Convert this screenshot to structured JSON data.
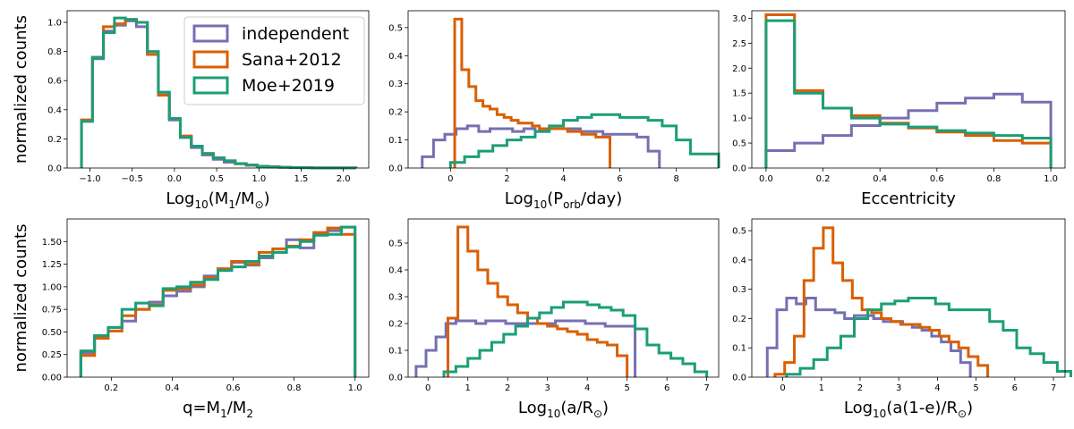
{
  "colors": {
    "independent": "#7570b3",
    "sana": "#d95f02",
    "moe": "#1b9e77"
  },
  "legend": {
    "location": "upper right of first panel",
    "entries": [
      {
        "label": "independent",
        "color": "#7570b3"
      },
      {
        "label": "Sana+2012",
        "color": "#d95f02"
      },
      {
        "label": "Moe+2019",
        "color": "#1b9e77"
      }
    ]
  },
  "chart_data": [
    {
      "id": "p1",
      "type": "histogram",
      "xlabel_main": "Log",
      "xlabel_sub": "10",
      "xlabel_rest": "(M",
      "xlabel_sub2": "1",
      "xlabel_rest2": "/M",
      "xlabel_sun": "⊙",
      "xlabel_tail": ")",
      "ylabel": "normalized counts",
      "xlim": [
        -1.27,
        2.3
      ],
      "ylim": [
        0,
        1.08
      ],
      "xticks": [
        -1.0,
        -0.5,
        0.0,
        0.5,
        1.0,
        1.5,
        2.0
      ],
      "xtick_labels": [
        "−1.0",
        "−0.5",
        "0.0",
        "0.5",
        "1.0",
        "1.5",
        "2.0"
      ],
      "yticks": [
        0.0,
        0.2,
        0.4,
        0.6,
        0.8,
        1.0
      ],
      "ytick_labels": [
        "0.0",
        "0.2",
        "0.4",
        "0.6",
        "0.8",
        "1.0"
      ],
      "series": [
        {
          "key": "independent",
          "x0": -1.1,
          "bin_width": 0.13,
          "values": [
            0.33,
            0.75,
            0.94,
            0.98,
            1.01,
            0.97,
            0.78,
            0.52,
            0.33,
            0.21,
            0.14,
            0.09,
            0.06,
            0.04,
            0.03,
            0.02,
            0.01,
            0.01,
            0.005,
            0.003,
            0.002,
            0.001,
            0.001,
            0.001,
            0.0005
          ]
        },
        {
          "key": "sana",
          "x0": -1.1,
          "bin_width": 0.13,
          "values": [
            0.33,
            0.76,
            0.97,
            0.99,
            1.02,
            1.0,
            0.78,
            0.5,
            0.34,
            0.22,
            0.15,
            0.1,
            0.07,
            0.05,
            0.03,
            0.02,
            0.012,
            0.008,
            0.005,
            0.003,
            0.002,
            0.001,
            0.001,
            0.001,
            0.0005
          ]
        },
        {
          "key": "moe",
          "x0": -1.1,
          "bin_width": 0.13,
          "values": [
            0.32,
            0.76,
            0.93,
            1.03,
            1.02,
            1.0,
            0.8,
            0.52,
            0.34,
            0.21,
            0.15,
            0.1,
            0.07,
            0.05,
            0.03,
            0.02,
            0.012,
            0.008,
            0.005,
            0.003,
            0.002,
            0.001,
            0.001,
            0.001,
            0.0005
          ]
        }
      ]
    },
    {
      "id": "p2",
      "type": "histogram",
      "xlabel_main": "Log",
      "xlabel_sub": "10",
      "xlabel_rest": "(P",
      "xlabel_sub2": "orb",
      "xlabel_rest2": "/day)",
      "xlabel_sun": "",
      "xlabel_tail": "",
      "ylabel": "",
      "xlim": [
        -1.5,
        9.5
      ],
      "ylim": [
        0,
        0.56
      ],
      "xticks": [
        0,
        2,
        4,
        6,
        8
      ],
      "xtick_labels": [
        "0",
        "2",
        "4",
        "6",
        "8"
      ],
      "yticks": [
        0.0,
        0.1,
        0.2,
        0.3,
        0.4,
        0.5
      ],
      "ytick_labels": [
        "0.0",
        "0.1",
        "0.2",
        "0.3",
        "0.4",
        "0.5"
      ],
      "series": [
        {
          "key": "independent",
          "x0": -1.0,
          "bin_width": 0.4,
          "values": [
            0.04,
            0.1,
            0.12,
            0.14,
            0.15,
            0.13,
            0.14,
            0.14,
            0.13,
            0.14,
            0.13,
            0.14,
            0.14,
            0.14,
            0.13,
            0.13,
            0.12,
            0.12,
            0.12,
            0.11,
            0.06
          ]
        },
        {
          "key": "sana",
          "x0": 0.15,
          "bin_width": 0.25,
          "values": [
            0.53,
            0.35,
            0.29,
            0.24,
            0.22,
            0.21,
            0.19,
            0.18,
            0.17,
            0.16,
            0.16,
            0.15,
            0.14,
            0.14,
            0.14,
            0.14,
            0.13,
            0.13,
            0.12,
            0.12,
            0.11,
            0.11
          ]
        },
        {
          "key": "moe",
          "x0": 0.0,
          "bin_width": 0.5,
          "values": [
            0.02,
            0.04,
            0.06,
            0.08,
            0.1,
            0.11,
            0.13,
            0.15,
            0.17,
            0.18,
            0.19,
            0.19,
            0.18,
            0.18,
            0.17,
            0.15,
            0.1,
            0.05,
            0.05
          ]
        }
      ]
    },
    {
      "id": "p3",
      "type": "histogram",
      "xlabel_plain": "Eccentricity",
      "ylabel": "",
      "xlim": [
        -0.05,
        1.05
      ],
      "ylim": [
        0,
        3.15
      ],
      "xticks": [
        0.0,
        0.2,
        0.4,
        0.6,
        0.8,
        1.0
      ],
      "xtick_labels": [
        "0.0",
        "0.2",
        "0.4",
        "0.6",
        "0.8",
        "1.0"
      ],
      "yticks": [
        0.0,
        0.5,
        1.0,
        1.5,
        2.0,
        2.5,
        3.0
      ],
      "ytick_labels": [
        "0.0",
        "0.5",
        "1.0",
        "1.5",
        "2.0",
        "2.5",
        "3.0"
      ],
      "series": [
        {
          "key": "independent",
          "x0": 0.0,
          "bin_width": 0.1,
          "values": [
            0.35,
            0.5,
            0.65,
            0.85,
            1.0,
            1.15,
            1.3,
            1.4,
            1.48,
            1.32
          ]
        },
        {
          "key": "sana",
          "x0": 0.0,
          "bin_width": 0.1,
          "values": [
            3.07,
            1.55,
            1.2,
            1.05,
            0.9,
            0.8,
            0.72,
            0.65,
            0.55,
            0.5
          ]
        },
        {
          "key": "moe",
          "x0": 0.0,
          "bin_width": 0.1,
          "values": [
            2.95,
            1.5,
            1.2,
            1.0,
            0.88,
            0.82,
            0.75,
            0.7,
            0.65,
            0.6
          ]
        }
      ]
    },
    {
      "id": "p4",
      "type": "histogram",
      "xlabel_main": "q=M",
      "xlabel_sub": "1",
      "xlabel_rest": "/M",
      "xlabel_sub2": "2",
      "xlabel_rest2": "",
      "xlabel_sun": "",
      "xlabel_tail": "",
      "ylabel": "normalized counts",
      "xlim": [
        0.055,
        1.045
      ],
      "ylim": [
        0,
        1.75
      ],
      "xticks": [
        0.2,
        0.4,
        0.6,
        0.8,
        1.0
      ],
      "xtick_labels": [
        "0.2",
        "0.4",
        "0.6",
        "0.8",
        "1.0"
      ],
      "yticks": [
        0.0,
        0.25,
        0.5,
        0.75,
        1.0,
        1.25,
        1.5
      ],
      "ytick_labels": [
        "0.00",
        "0.25",
        "0.50",
        "0.75",
        "1.00",
        "1.25",
        "1.50"
      ],
      "series": [
        {
          "key": "independent",
          "x0": 0.1,
          "bin_width": 0.045,
          "values": [
            0.27,
            0.46,
            0.55,
            0.62,
            0.75,
            0.83,
            0.9,
            0.95,
            1.0,
            1.12,
            1.18,
            1.27,
            1.24,
            1.32,
            1.38,
            1.52,
            1.43,
            1.58,
            1.62,
            1.66
          ]
        },
        {
          "key": "sana",
          "x0": 0.1,
          "bin_width": 0.045,
          "values": [
            0.24,
            0.43,
            0.51,
            0.68,
            0.75,
            0.8,
            0.96,
            0.98,
            1.02,
            1.1,
            1.2,
            1.28,
            1.25,
            1.38,
            1.42,
            1.45,
            1.52,
            1.6,
            1.65,
            1.58
          ]
        },
        {
          "key": "moe",
          "x0": 0.1,
          "bin_width": 0.045,
          "values": [
            0.29,
            0.46,
            0.55,
            0.75,
            0.82,
            0.79,
            0.98,
            1.0,
            1.05,
            1.08,
            1.18,
            1.22,
            1.28,
            1.34,
            1.38,
            1.44,
            1.5,
            1.57,
            1.58,
            1.66
          ]
        }
      ]
    },
    {
      "id": "p5",
      "type": "histogram",
      "xlabel_main": "Log",
      "xlabel_sub": "10",
      "xlabel_rest": "(a/R",
      "xlabel_sub2": "",
      "xlabel_rest2": "",
      "xlabel_sun": "⊙",
      "xlabel_tail": ")",
      "ylabel": "",
      "xlim": [
        -0.5,
        7.3
      ],
      "ylim": [
        0,
        0.59
      ],
      "xticks": [
        0,
        1,
        2,
        3,
        4,
        5,
        6,
        7
      ],
      "xtick_labels": [
        "0",
        "1",
        "2",
        "3",
        "4",
        "5",
        "6",
        "7"
      ],
      "yticks": [
        0.0,
        0.1,
        0.2,
        0.3,
        0.4,
        0.5
      ],
      "ytick_labels": [
        "0.0",
        "0.1",
        "0.2",
        "0.3",
        "0.4",
        "0.5"
      ],
      "series": [
        {
          "key": "independent",
          "x0": -0.3,
          "bin_width": 0.25,
          "values": [
            0.04,
            0.1,
            0.15,
            0.2,
            0.21,
            0.21,
            0.2,
            0.21,
            0.21,
            0.2,
            0.2,
            0.2,
            0.2,
            0.2,
            0.21,
            0.21,
            0.21,
            0.2,
            0.2,
            0.19,
            0.19,
            0.19
          ]
        },
        {
          "key": "sana",
          "x0": 0.5,
          "bin_width": 0.25,
          "values": [
            0.22,
            0.56,
            0.47,
            0.4,
            0.35,
            0.3,
            0.27,
            0.24,
            0.22,
            0.2,
            0.19,
            0.18,
            0.17,
            0.16,
            0.14,
            0.13,
            0.12,
            0.08
          ]
        },
        {
          "key": "moe",
          "x0": 0.4,
          "bin_width": 0.3,
          "values": [
            0.02,
            0.04,
            0.07,
            0.1,
            0.13,
            0.16,
            0.19,
            0.22,
            0.24,
            0.26,
            0.28,
            0.28,
            0.27,
            0.26,
            0.25,
            0.23,
            0.18,
            0.12,
            0.09,
            0.07,
            0.05,
            0.02
          ]
        }
      ]
    },
    {
      "id": "p6",
      "type": "histogram",
      "xlabel_main": "Log",
      "xlabel_sub": "10",
      "xlabel_rest": "(a(1-e)/R",
      "xlabel_sub2": "",
      "xlabel_rest2": "",
      "xlabel_sun": "⊙",
      "xlabel_tail": ")",
      "ylabel": "",
      "xlim": [
        -0.8,
        7.3
      ],
      "ylim": [
        0,
        0.54
      ],
      "xticks": [
        0,
        1,
        2,
        3,
        4,
        5,
        6,
        7
      ],
      "xtick_labels": [
        "0",
        "1",
        "2",
        "3",
        "4",
        "5",
        "6",
        "7"
      ],
      "yticks": [
        0.0,
        0.1,
        0.2,
        0.3,
        0.4,
        0.5
      ],
      "ytick_labels": [
        "0.0",
        "0.1",
        "0.2",
        "0.3",
        "0.4",
        "0.5"
      ],
      "series": [
        {
          "key": "independent",
          "x0": -0.4,
          "bin_width": 0.25,
          "values": [
            0.1,
            0.23,
            0.27,
            0.25,
            0.27,
            0.23,
            0.23,
            0.22,
            0.2,
            0.21,
            0.21,
            0.2,
            0.19,
            0.19,
            0.18,
            0.17,
            0.16,
            0.14,
            0.12,
            0.09,
            0.05
          ]
        },
        {
          "key": "sana",
          "x0": -0.2,
          "bin_width": 0.25,
          "values": [
            0.01,
            0.05,
            0.14,
            0.33,
            0.44,
            0.51,
            0.39,
            0.33,
            0.27,
            0.23,
            0.22,
            0.2,
            0.19,
            0.18,
            0.18,
            0.17,
            0.16,
            0.14,
            0.12,
            0.1,
            0.07,
            0.04
          ]
        },
        {
          "key": "moe",
          "x0": 0.1,
          "bin_width": 0.35,
          "values": [
            0.01,
            0.03,
            0.06,
            0.1,
            0.14,
            0.2,
            0.23,
            0.25,
            0.26,
            0.27,
            0.27,
            0.25,
            0.23,
            0.23,
            0.23,
            0.19,
            0.16,
            0.1,
            0.08,
            0.05,
            0.02
          ]
        }
      ]
    }
  ]
}
